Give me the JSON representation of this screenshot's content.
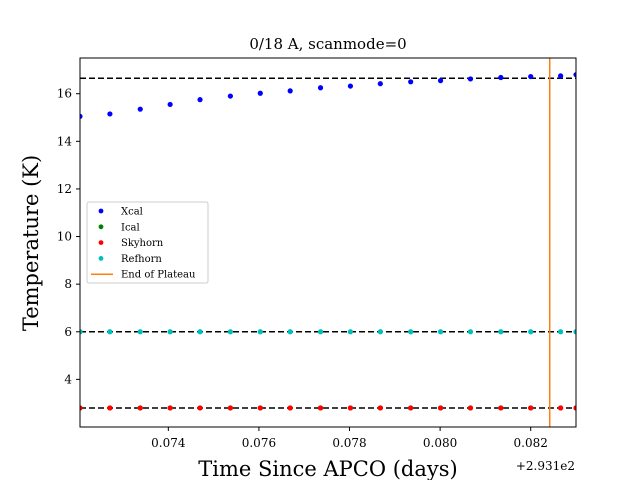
{
  "chart_data": {
    "type": "scatter",
    "title": "0/18 A, scanmode=0",
    "xlabel": "Time Since APCO (days)",
    "ylabel": "Temperature (K)",
    "x_offset_label": "+2.931e2",
    "xlim": [
      0.07205,
      0.083
    ],
    "ylim": [
      2.0,
      17.5
    ],
    "xticks": [
      0.074,
      0.076,
      0.078,
      0.08,
      0.082
    ],
    "xtick_labels": [
      "0.074",
      "0.076",
      "0.078",
      "0.080",
      "0.082"
    ],
    "yticks": [
      4,
      6,
      8,
      10,
      12,
      14,
      16
    ],
    "ytick_labels": [
      "4",
      "6",
      "8",
      "10",
      "12",
      "14",
      "16"
    ],
    "legend_position": "center-left",
    "x": [
      0.07205,
      0.07271,
      0.07338,
      0.07404,
      0.0747,
      0.07537,
      0.07603,
      0.07669,
      0.07736,
      0.07802,
      0.07868,
      0.07935,
      0.08001,
      0.08067,
      0.08134,
      0.082,
      0.08266,
      0.083
    ],
    "series": [
      {
        "name": "Xcal",
        "color": "#0000ff",
        "marker": "dot",
        "values": [
          15.05,
          15.15,
          15.35,
          15.55,
          15.75,
          15.9,
          16.02,
          16.12,
          16.25,
          16.32,
          16.42,
          16.5,
          16.55,
          16.62,
          16.68,
          16.72,
          16.75,
          16.8
        ]
      },
      {
        "name": "Ical",
        "color": "#008000",
        "marker": "dot",
        "values": [
          2.8,
          2.8,
          2.8,
          2.8,
          2.8,
          2.8,
          2.8,
          2.8,
          2.8,
          2.8,
          2.8,
          2.8,
          2.8,
          2.8,
          2.8,
          2.8,
          2.8,
          2.8
        ]
      },
      {
        "name": "Skyhorn",
        "color": "#ff0000",
        "marker": "dot",
        "values": [
          2.8,
          2.8,
          2.8,
          2.8,
          2.8,
          2.8,
          2.8,
          2.8,
          2.8,
          2.8,
          2.8,
          2.8,
          2.8,
          2.8,
          2.8,
          2.8,
          2.8,
          2.8
        ]
      },
      {
        "name": "Refhorn",
        "color": "#00bfbf",
        "marker": "dot",
        "values": [
          6.0,
          6.0,
          6.0,
          6.0,
          6.0,
          6.0,
          6.0,
          6.0,
          6.0,
          6.0,
          6.0,
          6.0,
          6.0,
          6.0,
          6.0,
          6.0,
          6.0,
          6.0
        ]
      }
    ],
    "hlines": [
      16.65,
      6.0,
      2.8
    ],
    "hline_color": "#000000",
    "vline": {
      "name": "End of Plateau",
      "x": 0.08242,
      "color": "#ff7f0e"
    }
  }
}
